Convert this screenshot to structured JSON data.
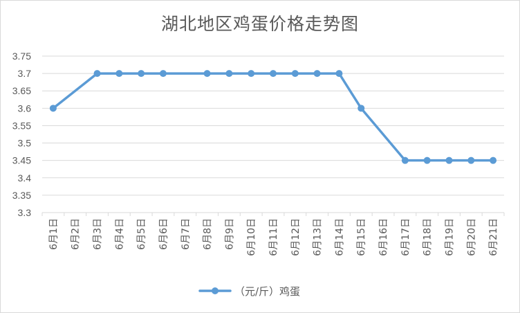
{
  "chart_data": {
    "type": "line",
    "title": "湖北地区鸡蛋价格走势图",
    "xlabel": "",
    "ylabel": "",
    "categories": [
      "6月1日",
      "6月2日",
      "6月3日",
      "6月4日",
      "6月5日",
      "6月6日",
      "6月7日",
      "6月8日",
      "6月9日",
      "6月10日",
      "6月11日",
      "6月12日",
      "6月13日",
      "6月14日",
      "6月15日",
      "6月16日",
      "6月17日",
      "6月18日",
      "6月19日",
      "6月20日",
      "6月21日"
    ],
    "series": [
      {
        "name": "（元/斤）鸡蛋",
        "values": [
          3.6,
          null,
          3.7,
          3.7,
          3.7,
          3.7,
          null,
          3.7,
          3.7,
          3.7,
          3.7,
          3.7,
          3.7,
          3.7,
          3.6,
          null,
          3.45,
          3.45,
          3.45,
          3.45,
          3.45
        ],
        "color": "#5b9bd5"
      }
    ],
    "ylim": [
      3.3,
      3.75
    ],
    "yticks": [
      "3.3",
      "3.35",
      "3.4",
      "3.45",
      "3.5",
      "3.55",
      "3.6",
      "3.65",
      "3.7",
      "3.75"
    ],
    "grid": true,
    "legend": "bottom",
    "gridColor": "#d9d9d9"
  }
}
